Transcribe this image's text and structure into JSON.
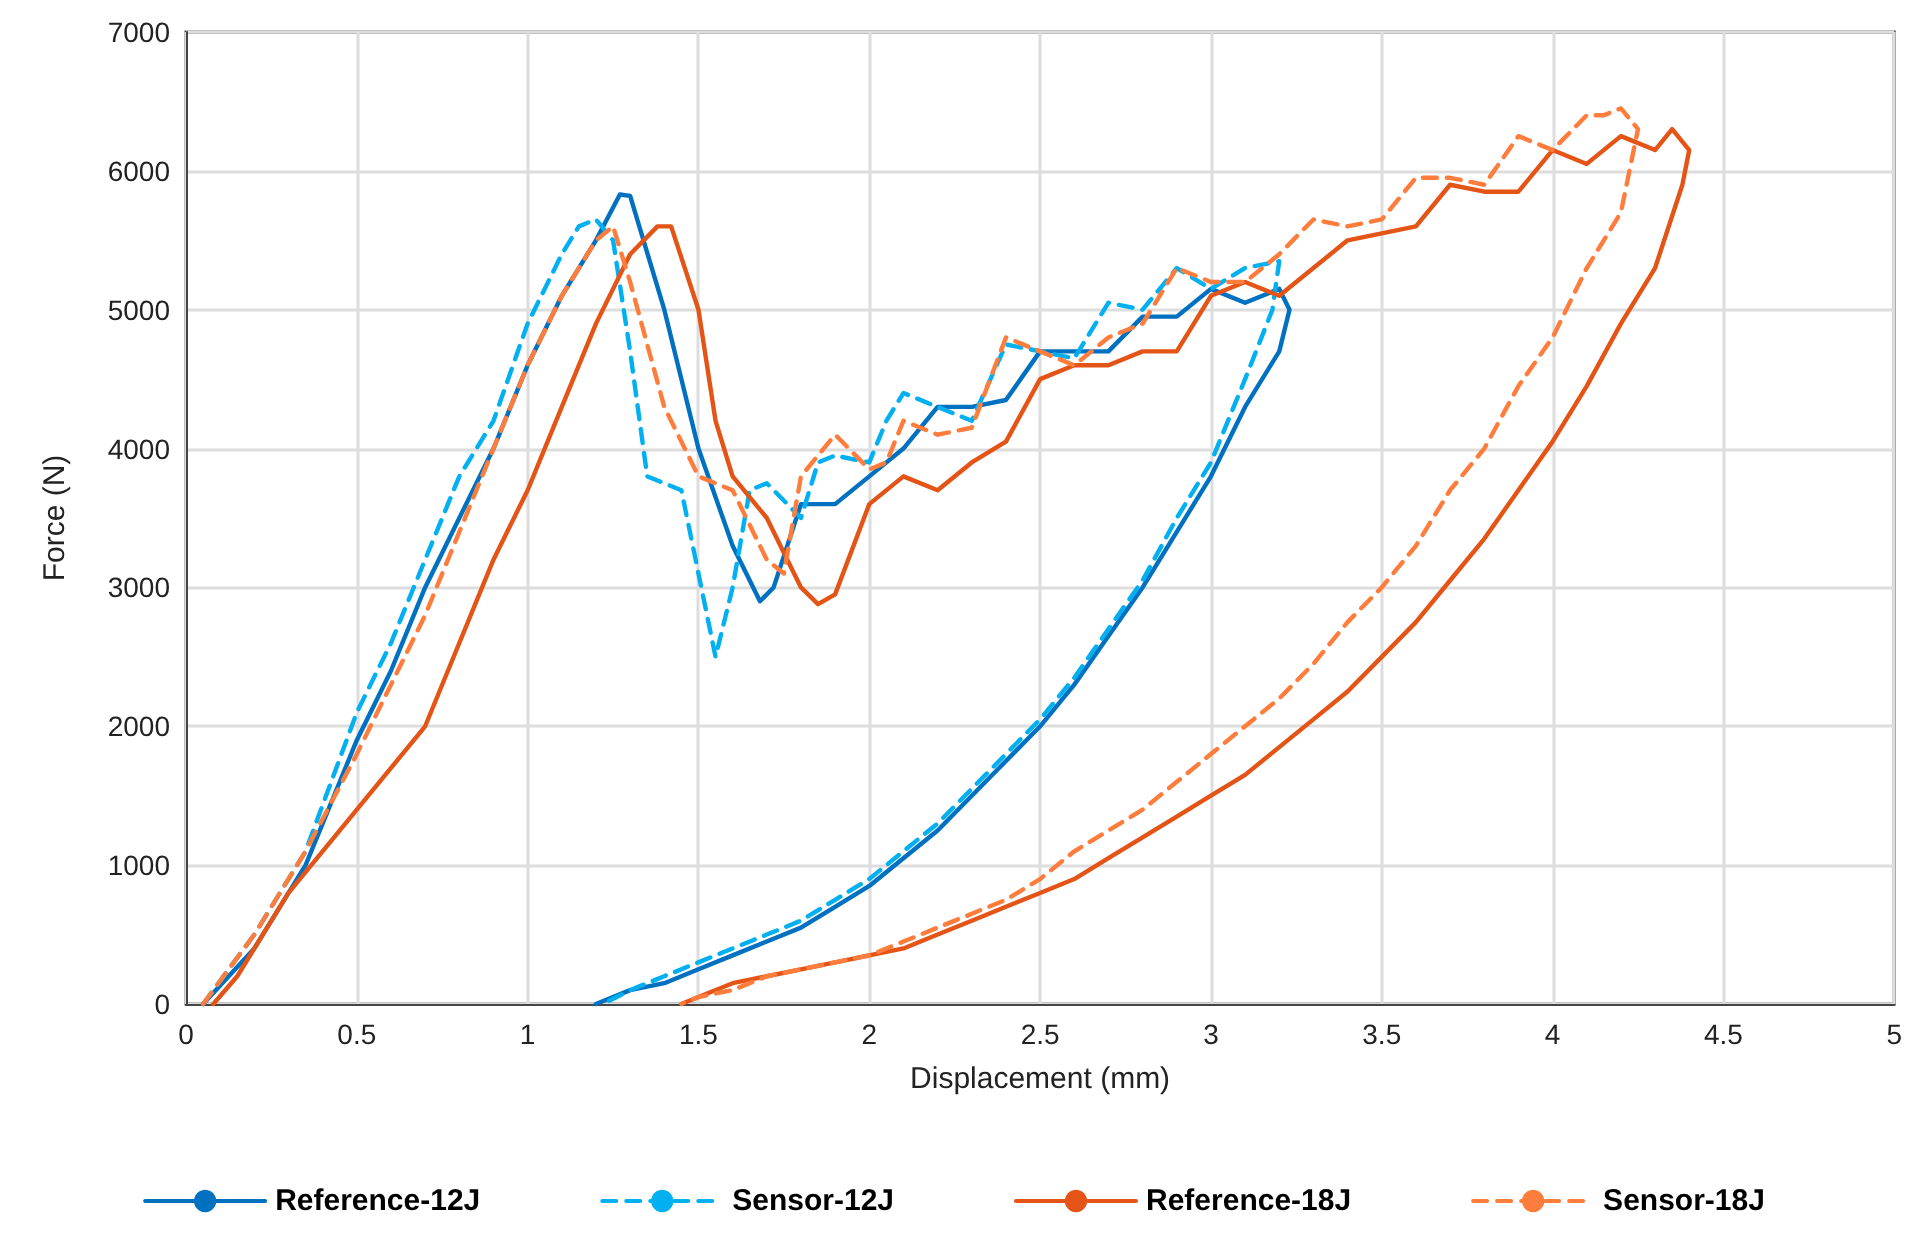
{
  "chart_data": {
    "type": "line",
    "xlabel": "Displacement (mm)",
    "ylabel": "Force (N)",
    "xlim": [
      0,
      5
    ],
    "xticks": [
      0,
      0.5,
      1,
      1.5,
      2,
      2.5,
      3,
      3.5,
      4,
      4.5,
      5
    ],
    "ylim": [
      0,
      7000
    ],
    "yticks": [
      0,
      1000,
      2000,
      3000,
      4000,
      5000,
      6000,
      7000
    ],
    "grid": true,
    "legend": "bottom",
    "marker": "none",
    "series": [
      {
        "name": "Reference-12J",
        "color": "#0070c0",
        "line_style": "solid",
        "x": [
          0.05,
          0.2,
          0.35,
          0.5,
          0.6,
          0.7,
          0.8,
          0.9,
          1.0,
          1.1,
          1.2,
          1.27,
          1.3,
          1.4,
          1.5,
          1.6,
          1.68,
          1.72,
          1.8,
          1.9,
          2.0,
          2.1,
          2.2,
          2.3,
          2.4,
          2.5,
          2.6,
          2.7,
          2.8,
          2.9,
          3.0,
          3.1,
          3.2,
          3.23,
          3.2,
          3.1,
          3.0,
          2.9,
          2.8,
          2.7,
          2.6,
          2.5,
          2.4,
          2.3,
          2.2,
          2.1,
          2.0,
          1.9,
          1.8,
          1.7,
          1.6,
          1.5,
          1.4,
          1.3,
          1.2
        ],
        "values": [
          0,
          400,
          1000,
          1900,
          2400,
          3000,
          3500,
          4000,
          4600,
          5100,
          5500,
          5830,
          5820,
          5000,
          4000,
          3300,
          2900,
          3000,
          3600,
          3600,
          3800,
          4000,
          4300,
          4300,
          4350,
          4700,
          4700,
          4700,
          4950,
          4950,
          5150,
          5050,
          5150,
          5000,
          4700,
          4300,
          3800,
          3400,
          3000,
          2650,
          2300,
          2000,
          1750,
          1500,
          1250,
          1050,
          850,
          700,
          550,
          450,
          350,
          250,
          150,
          100,
          0
        ]
      },
      {
        "name": "Sensor-12J",
        "color": "#00b0f0",
        "line_style": "dashed",
        "x": [
          0.05,
          0.2,
          0.35,
          0.5,
          0.6,
          0.7,
          0.8,
          0.9,
          1.0,
          1.1,
          1.15,
          1.2,
          1.25,
          1.3,
          1.35,
          1.45,
          1.5,
          1.55,
          1.6,
          1.65,
          1.7,
          1.8,
          1.85,
          1.9,
          2.0,
          2.05,
          2.1,
          2.2,
          2.3,
          2.4,
          2.5,
          2.6,
          2.7,
          2.8,
          2.9,
          3.0,
          3.1,
          3.2,
          3.18,
          3.1,
          3.0,
          2.9,
          2.8,
          2.7,
          2.6,
          2.5,
          2.4,
          2.3,
          2.2,
          2.1,
          2.0,
          1.9,
          1.8,
          1.7,
          1.6,
          1.5,
          1.4,
          1.3,
          1.22
        ],
        "values": [
          0,
          500,
          1100,
          2100,
          2600,
          3200,
          3800,
          4200,
          4900,
          5400,
          5600,
          5650,
          5500,
          4700,
          3800,
          3700,
          3100,
          2500,
          3000,
          3700,
          3750,
          3500,
          3900,
          3950,
          3900,
          4200,
          4400,
          4300,
          4200,
          4750,
          4700,
          4650,
          5050,
          5000,
          5300,
          5150,
          5300,
          5350,
          5000,
          4500,
          3900,
          3500,
          3050,
          2700,
          2350,
          2050,
          1800,
          1550,
          1300,
          1100,
          900,
          750,
          600,
          500,
          400,
          300,
          200,
          100,
          0
        ]
      },
      {
        "name": "Reference-18J",
        "color": "#e35416",
        "line_style": "solid",
        "x": [
          0.08,
          0.15,
          0.3,
          0.5,
          0.7,
          0.8,
          0.9,
          1.0,
          1.1,
          1.2,
          1.3,
          1.38,
          1.42,
          1.5,
          1.55,
          1.6,
          1.7,
          1.8,
          1.85,
          1.9,
          2.0,
          2.1,
          2.2,
          2.3,
          2.4,
          2.5,
          2.6,
          2.7,
          2.8,
          2.9,
          3.0,
          3.1,
          3.2,
          3.3,
          3.4,
          3.5,
          3.6,
          3.7,
          3.8,
          3.9,
          4.0,
          4.1,
          4.2,
          4.3,
          4.35,
          4.4,
          4.38,
          4.3,
          4.2,
          4.1,
          4.0,
          3.9,
          3.8,
          3.7,
          3.6,
          3.5,
          3.4,
          3.3,
          3.2,
          3.1,
          3.0,
          2.9,
          2.8,
          2.7,
          2.6,
          2.5,
          2.4,
          2.3,
          2.2,
          2.1,
          2.0,
          1.9,
          1.8,
          1.7,
          1.6,
          1.5,
          1.45
        ],
        "values": [
          0,
          200,
          800,
          1400,
          2000,
          2600,
          3200,
          3700,
          4300,
          4900,
          5400,
          5600,
          5600,
          5000,
          4200,
          3800,
          3500,
          3000,
          2880,
          2950,
          3600,
          3800,
          3700,
          3900,
          4050,
          4500,
          4600,
          4600,
          4700,
          4700,
          5100,
          5200,
          5100,
          5300,
          5500,
          5550,
          5600,
          5900,
          5850,
          5850,
          6150,
          6050,
          6250,
          6150,
          6300,
          6150,
          5900,
          5300,
          4900,
          4450,
          4050,
          3700,
          3350,
          3050,
          2750,
          2500,
          2250,
          2050,
          1850,
          1650,
          1500,
          1350,
          1200,
          1050,
          900,
          800,
          700,
          600,
          500,
          400,
          350,
          300,
          250,
          200,
          150,
          50,
          0
        ]
      },
      {
        "name": "Sensor-18J",
        "color": "#ff7d3c",
        "line_style": "dashed",
        "x": [
          0.05,
          0.2,
          0.35,
          0.5,
          0.6,
          0.7,
          0.8,
          0.9,
          1.0,
          1.1,
          1.2,
          1.25,
          1.3,
          1.4,
          1.5,
          1.6,
          1.7,
          1.75,
          1.8,
          1.9,
          2.0,
          2.05,
          2.1,
          2.2,
          2.3,
          2.4,
          2.5,
          2.6,
          2.7,
          2.8,
          2.9,
          3.0,
          3.1,
          3.2,
          3.3,
          3.4,
          3.5,
          3.6,
          3.7,
          3.8,
          3.9,
          4.0,
          4.1,
          4.15,
          4.2,
          4.25,
          4.2,
          4.1,
          4.0,
          3.9,
          3.8,
          3.7,
          3.6,
          3.5,
          3.4,
          3.3,
          3.2,
          3.1,
          3.0,
          2.9,
          2.8,
          2.7,
          2.6,
          2.5,
          2.4,
          2.3,
          2.2,
          2.1,
          2.0,
          1.9,
          1.8,
          1.7,
          1.6,
          1.5,
          1.45
        ],
        "values": [
          0,
          500,
          1100,
          1800,
          2300,
          2800,
          3400,
          4000,
          4600,
          5100,
          5500,
          5600,
          5200,
          4300,
          3800,
          3700,
          3200,
          3100,
          3800,
          4100,
          3850,
          3900,
          4200,
          4100,
          4150,
          4800,
          4700,
          4600,
          4800,
          4900,
          5300,
          5200,
          5200,
          5400,
          5650,
          5600,
          5650,
          5950,
          5950,
          5900,
          6250,
          6150,
          6400,
          6400,
          6450,
          6300,
          5700,
          5300,
          4800,
          4450,
          4000,
          3700,
          3300,
          3000,
          2750,
          2450,
          2200,
          2000,
          1800,
          1600,
          1400,
          1250,
          1100,
          900,
          750,
          650,
          550,
          450,
          350,
          300,
          250,
          200,
          100,
          50,
          0
        ]
      }
    ]
  }
}
